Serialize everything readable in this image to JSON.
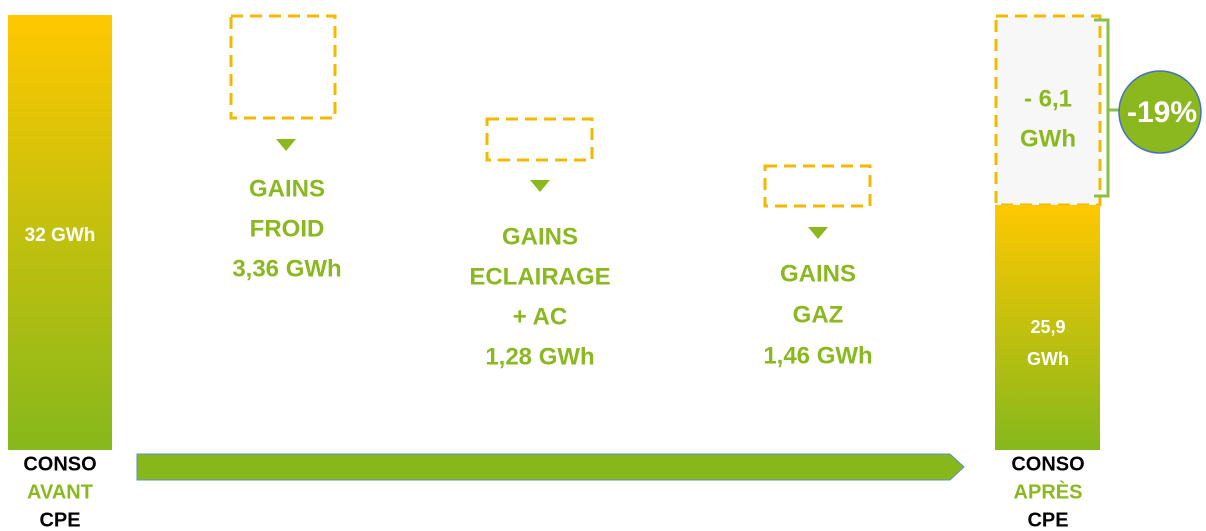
{
  "before": {
    "value_label": "32 GWh",
    "caption": [
      "CONSO",
      "AVANT",
      "CPE"
    ]
  },
  "gains": [
    {
      "lines": [
        "GAINS",
        "FROID",
        "3,36 GWh"
      ]
    },
    {
      "lines": [
        "GAINS",
        "ECLAIRAGE",
        "+ AC",
        "1,28 GWh"
      ]
    },
    {
      "lines": [
        "GAINS",
        "GAZ",
        "1,46 GWh"
      ]
    }
  ],
  "after": {
    "saving_lines": [
      "- 6,1",
      "GWh"
    ],
    "value_lines": [
      "25,9",
      "GWh"
    ],
    "caption": [
      "CONSO",
      "APRÈS",
      "CPE"
    ],
    "percent": "-19%"
  }
}
